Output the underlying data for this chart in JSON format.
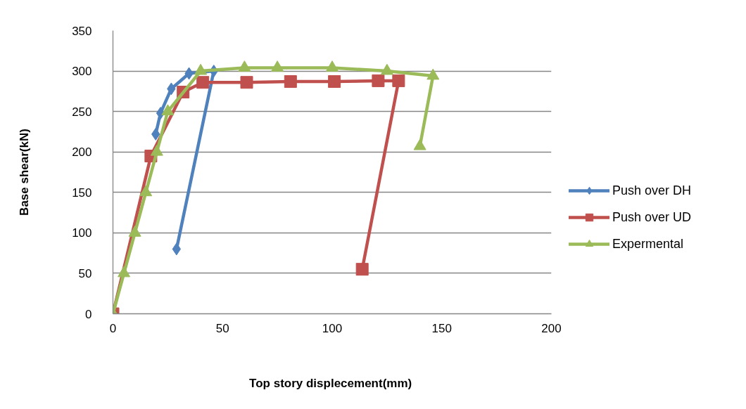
{
  "chart_data": {
    "type": "line",
    "xlabel": "Top story  displecement(mm)",
    "ylabel": "Base shear(kN)",
    "xlim": [
      0,
      200
    ],
    "xticks": [
      0,
      50,
      100,
      150,
      200
    ],
    "ylim": [
      0,
      350
    ],
    "yticks": [
      0,
      50,
      100,
      150,
      200,
      250,
      300,
      350
    ],
    "grid": "y",
    "legend": "right",
    "line_style": "solid",
    "series": [
      {
        "name": "Push over DH",
        "color": "#4f81bd",
        "marker": "diamond",
        "x": [
          19.5,
          21.7,
          26.6,
          34.7,
          46,
          29
        ],
        "values": [
          222,
          248,
          278,
          297,
          300,
          80
        ]
      },
      {
        "name": "Push over UD",
        "color": "#c0504d",
        "marker": "square",
        "x": [
          0,
          17.3,
          32,
          41,
          61,
          81,
          101,
          121,
          130.3,
          113.7
        ],
        "values": [
          0,
          195,
          274,
          286,
          286,
          287,
          287,
          288,
          288,
          55
        ]
      },
      {
        "name": "Expermental",
        "color": "#9bbb59",
        "marker": "triangle",
        "x": [
          0,
          5,
          10,
          15,
          20,
          25,
          40,
          60,
          75,
          100,
          125,
          146,
          140
        ],
        "values": [
          0,
          50,
          100,
          150,
          200,
          250,
          300,
          304,
          304,
          304,
          300,
          294,
          207
        ]
      }
    ]
  }
}
